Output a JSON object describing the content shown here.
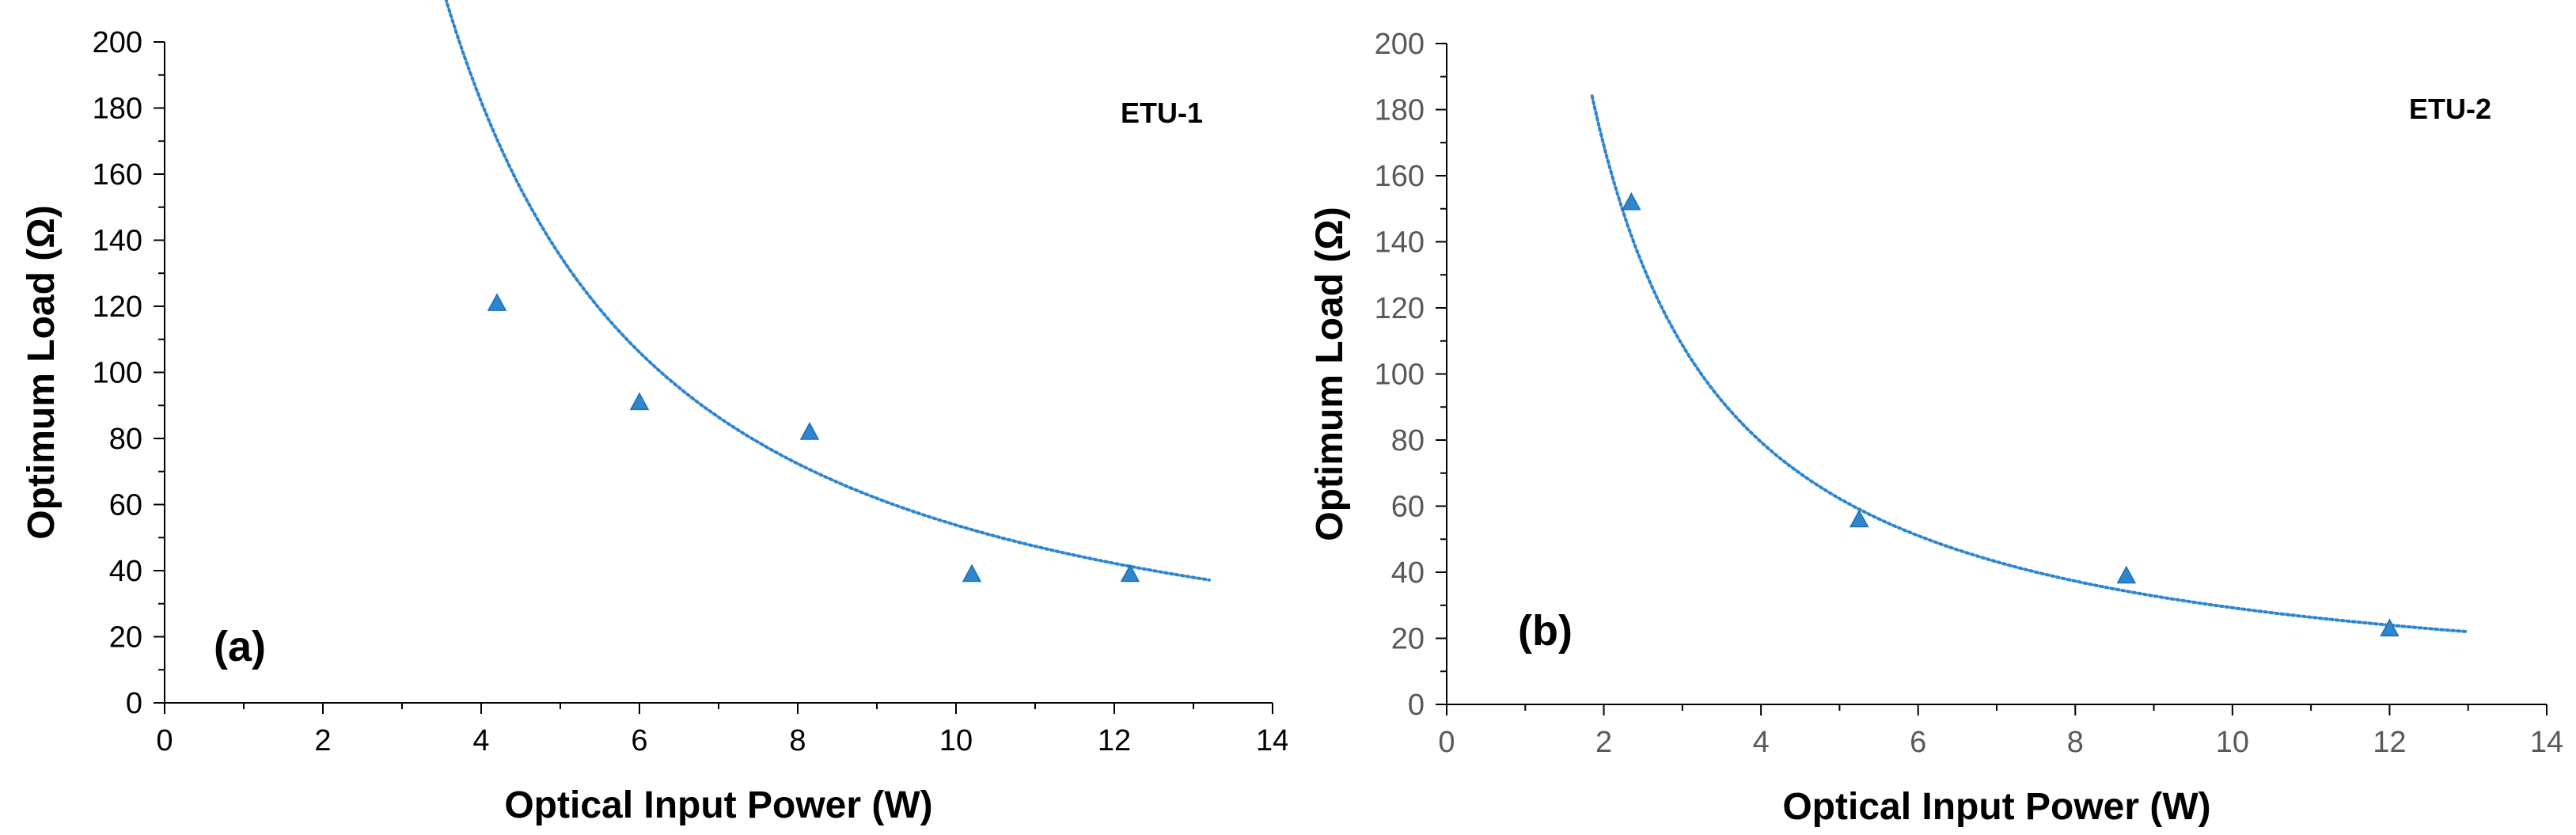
{
  "chart_data": [
    {
      "type": "scatter",
      "panel_label": "(a)",
      "series_label": "ETU-1",
      "xlabel": "Optical Input Power (W)",
      "ylabel": "Optimum Load (Ω)",
      "xlim": [
        0,
        14
      ],
      "ylim": [
        0,
        200
      ],
      "xticks": [
        "0",
        "2",
        "4",
        "6",
        "8",
        "10",
        "12",
        "14"
      ],
      "yticks": [
        "0",
        "20",
        "40",
        "60",
        "80",
        "100",
        "120",
        "140",
        "160",
        "180",
        "200"
      ],
      "points": {
        "x": [
          4.2,
          6.0,
          8.15,
          10.2,
          12.2
        ],
        "y": [
          121,
          91,
          82,
          39,
          39
        ]
      },
      "trendline": {
        "kind": "power",
        "a": 1150,
        "b": -1.33,
        "x_start": 3.0,
        "x_end": 13.2
      },
      "color": "#2E86D1"
    },
    {
      "type": "scatter",
      "panel_label": "(b)",
      "series_label": "ETU-2",
      "xlabel": "Optical Input Power (W)",
      "ylabel": "Optimum Load (Ω)",
      "xlim": [
        0,
        14
      ],
      "ylim": [
        0,
        200
      ],
      "xticks": [
        "0",
        "2",
        "4",
        "6",
        "8",
        "10",
        "12",
        "14"
      ],
      "yticks": [
        "0",
        "20",
        "40",
        "60",
        "80",
        "100",
        "120",
        "140",
        "160",
        "180",
        "200"
      ],
      "points": {
        "x": [
          2.35,
          5.25,
          8.65,
          12.0
        ],
        "y": [
          152,
          56,
          39,
          23
        ]
      },
      "trendline": {
        "kind": "power",
        "a": 360,
        "b": -1.09,
        "x_start": 1.85,
        "x_end": 13.0
      },
      "color": "#2E86D1"
    }
  ]
}
